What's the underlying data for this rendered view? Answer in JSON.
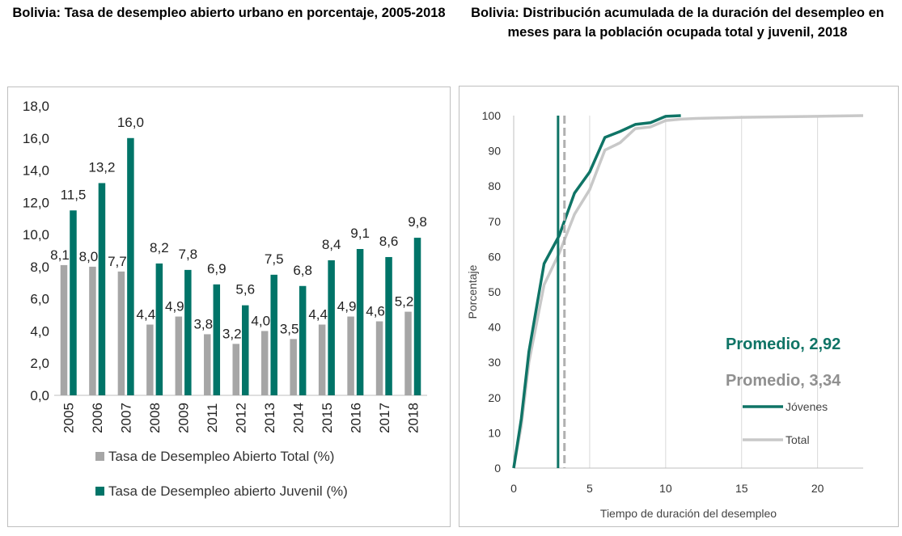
{
  "chart_data": [
    {
      "type": "bar",
      "title": "Bolivia: Tasa de desempleo abierto urbano en porcentaje, 2005-2018",
      "categories": [
        "2005",
        "2006",
        "2007",
        "2008",
        "2009",
        "2011",
        "2012",
        "2013",
        "2014",
        "2015",
        "2016",
        "2017",
        "2018"
      ],
      "series": [
        {
          "name": "Tasa de Desempleo Abierto Total (%)",
          "color": "#a6a6a6",
          "values": [
            8.1,
            8.0,
            7.7,
            4.4,
            4.9,
            3.8,
            3.2,
            4.0,
            3.5,
            4.4,
            4.9,
            4.6,
            5.2
          ],
          "labels": [
            "8,1",
            "8,0",
            "7,7",
            "4,4",
            "4,9",
            "3,8",
            "3,2",
            "4,0",
            "3,5",
            "4,4",
            "4,9",
            "4,6",
            "5,2"
          ]
        },
        {
          "name": "Tasa de Desempleo abierto Juvenil (%)",
          "color": "#007468",
          "values": [
            11.5,
            13.2,
            16.0,
            8.2,
            7.8,
            6.9,
            5.6,
            7.5,
            6.8,
            8.4,
            9.1,
            8.6,
            9.8
          ],
          "labels": [
            "11,5",
            "13,2",
            "16,0",
            "8,2",
            "7,8",
            "6,9",
            "5,6",
            "7,5",
            "6,8",
            "8,4",
            "9,1",
            "8,6",
            "9,8"
          ]
        }
      ],
      "ylim": [
        0,
        18
      ],
      "yticks": [
        "0,0",
        "2,0",
        "4,0",
        "6,0",
        "8,0",
        "10,0",
        "12,0",
        "14,0",
        "16,0",
        "18,0"
      ],
      "legend": "bottom"
    },
    {
      "type": "line",
      "title": "Bolivia:  Distribución acumulada de la duración del desempleo en meses para la población ocupada total y juvenil, 2018",
      "xlabel": "Tiempo de duración del desempleo",
      "ylabel": "Porcentaje",
      "xlim": [
        0,
        23
      ],
      "ylim": [
        0,
        100
      ],
      "xticks": [
        0,
        5,
        10,
        15,
        20
      ],
      "yticks": [
        0,
        10,
        20,
        30,
        40,
        50,
        60,
        70,
        80,
        90,
        100
      ],
      "series": [
        {
          "name": "Jóvenes",
          "color": "#0f7466",
          "x": [
            0,
            0.5,
            1,
            2,
            3,
            4,
            5,
            6,
            7,
            8,
            9,
            10,
            11
          ],
          "y": [
            0,
            14,
            33,
            58,
            66,
            78,
            84,
            93.8,
            95.5,
            97.5,
            98,
            99.8,
            100
          ]
        },
        {
          "name": "Total",
          "color": "#c8c8c8",
          "x": [
            0,
            0.5,
            1,
            2,
            3,
            4,
            5,
            6,
            7,
            8,
            9,
            10,
            11,
            12,
            15,
            20,
            23
          ],
          "y": [
            0,
            12,
            30,
            52,
            61,
            72,
            79,
            90.2,
            92.3,
            96.3,
            96.8,
            98.6,
            99,
            99.2,
            99.5,
            99.8,
            100
          ]
        }
      ],
      "vlines": [
        {
          "x": 2.92,
          "color": "#0f7466",
          "style": "solid",
          "label": "Promedio, 2,92"
        },
        {
          "x": 3.34,
          "color": "#b0b0b0",
          "style": "dashed",
          "label": "Promedio, 3,34"
        }
      ],
      "grid": "vertical",
      "legend": "bottom-right"
    }
  ]
}
